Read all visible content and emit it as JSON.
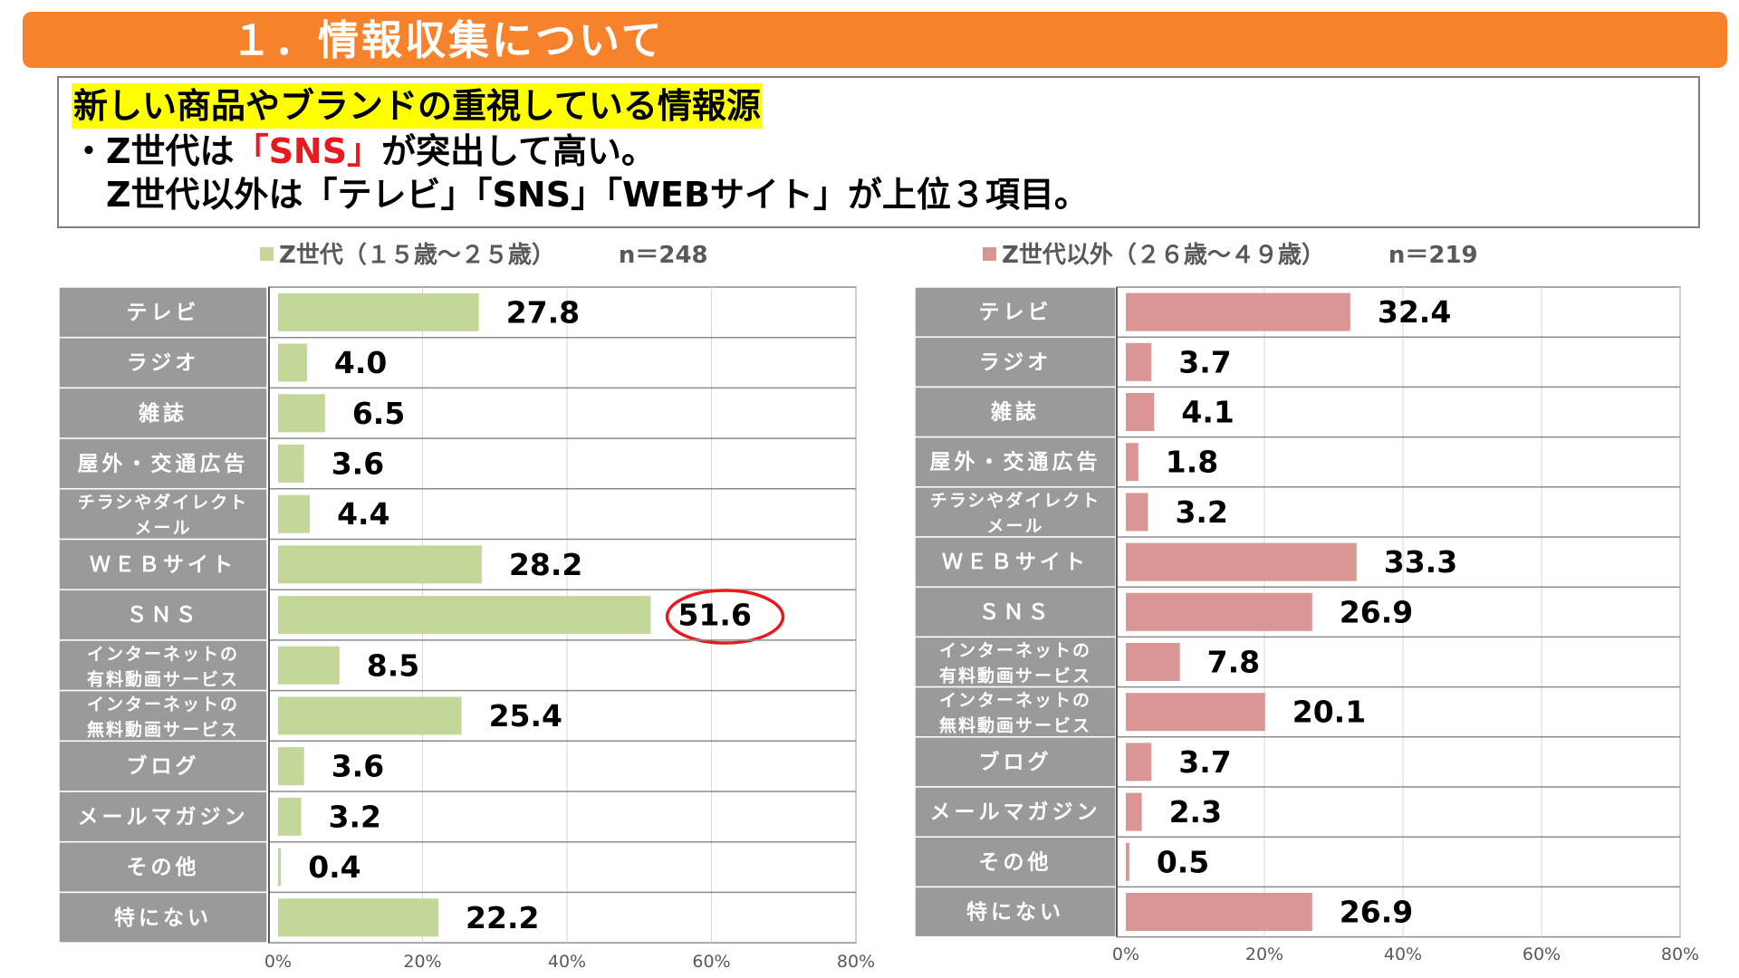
{
  "header": {
    "title": "１．情報収集について"
  },
  "summary": {
    "heading": "新しい商品やブランドの重視している情報源",
    "line1_prefix": "・Z世代は",
    "line1_highlight": "「SNS」",
    "line1_suffix": "が突出して高い。",
    "line2": "Z世代以外は「テレビ」「SNS」「WEBサイト」が上位３項目。"
  },
  "colors": {
    "header": "#f6822c",
    "label_cell": "#9a9a9a",
    "z_bar": "#c4d79b",
    "nonz_bar": "#da9694",
    "highlight_ring": "#e8191f",
    "highlight_text": "#e8191f"
  },
  "chart_data": [
    {
      "type": "bar",
      "orientation": "horizontal",
      "legend": "Z世代（１５歳～２５歳）",
      "n_label": "n＝248",
      "categories": [
        [
          "テレビ"
        ],
        [
          "ラジオ"
        ],
        [
          "雑誌"
        ],
        [
          "屋外・交通広告"
        ],
        [
          "チラシやダイレクト",
          "メール"
        ],
        [
          "ＷＥＢサイト"
        ],
        [
          "ＳＮＳ"
        ],
        [
          "インターネットの",
          "有料動画サービス"
        ],
        [
          "インターネットの",
          "無料動画サービス"
        ],
        [
          "ブログ"
        ],
        [
          "メールマガジン"
        ],
        [
          "その他"
        ],
        [
          "特にない"
        ]
      ],
      "values": [
        27.8,
        4.0,
        6.5,
        3.6,
        4.4,
        28.2,
        51.6,
        8.5,
        25.4,
        3.6,
        3.2,
        0.4,
        22.2
      ],
      "value_labels": [
        "27.8",
        "4.0",
        "6.5",
        "3.6",
        "4.4",
        "28.2",
        "51.6",
        "8.5",
        "25.4",
        "3.6",
        "3.2",
        "0.4",
        "22.2"
      ],
      "highlight_index": 6,
      "xlim": [
        0,
        80
      ],
      "xticks": [
        "0%",
        "20%",
        "40%",
        "60%",
        "80%"
      ],
      "tick_values": [
        0,
        20,
        40,
        60,
        80
      ],
      "color": "#c4d79b"
    },
    {
      "type": "bar",
      "orientation": "horizontal",
      "legend": "Z世代以外（２６歳～４９歳）",
      "n_label": "n＝219",
      "categories": [
        [
          "テレビ"
        ],
        [
          "ラジオ"
        ],
        [
          "雑誌"
        ],
        [
          "屋外・交通広告"
        ],
        [
          "チラシやダイレクト",
          "メール"
        ],
        [
          "ＷＥＢサイト"
        ],
        [
          "ＳＮＳ"
        ],
        [
          "インターネットの",
          "有料動画サービス"
        ],
        [
          "インターネットの",
          "無料動画サービス"
        ],
        [
          "ブログ"
        ],
        [
          "メールマガジン"
        ],
        [
          "その他"
        ],
        [
          "特にない"
        ]
      ],
      "values": [
        32.4,
        3.7,
        4.1,
        1.8,
        3.2,
        33.3,
        26.9,
        7.8,
        20.1,
        3.7,
        2.3,
        0.5,
        26.9
      ],
      "value_labels": [
        "32.4",
        "3.7",
        "4.1",
        "1.8",
        "3.2",
        "33.3",
        "26.9",
        "7.8",
        "20.1",
        "3.7",
        "2.3",
        "0.5",
        "26.9"
      ],
      "highlight_index": -1,
      "xlim": [
        0,
        80
      ],
      "xticks": [
        "0%",
        "20%",
        "40%",
        "60%",
        "80%"
      ],
      "tick_values": [
        0,
        20,
        40,
        60,
        80
      ],
      "color": "#da9694"
    }
  ]
}
